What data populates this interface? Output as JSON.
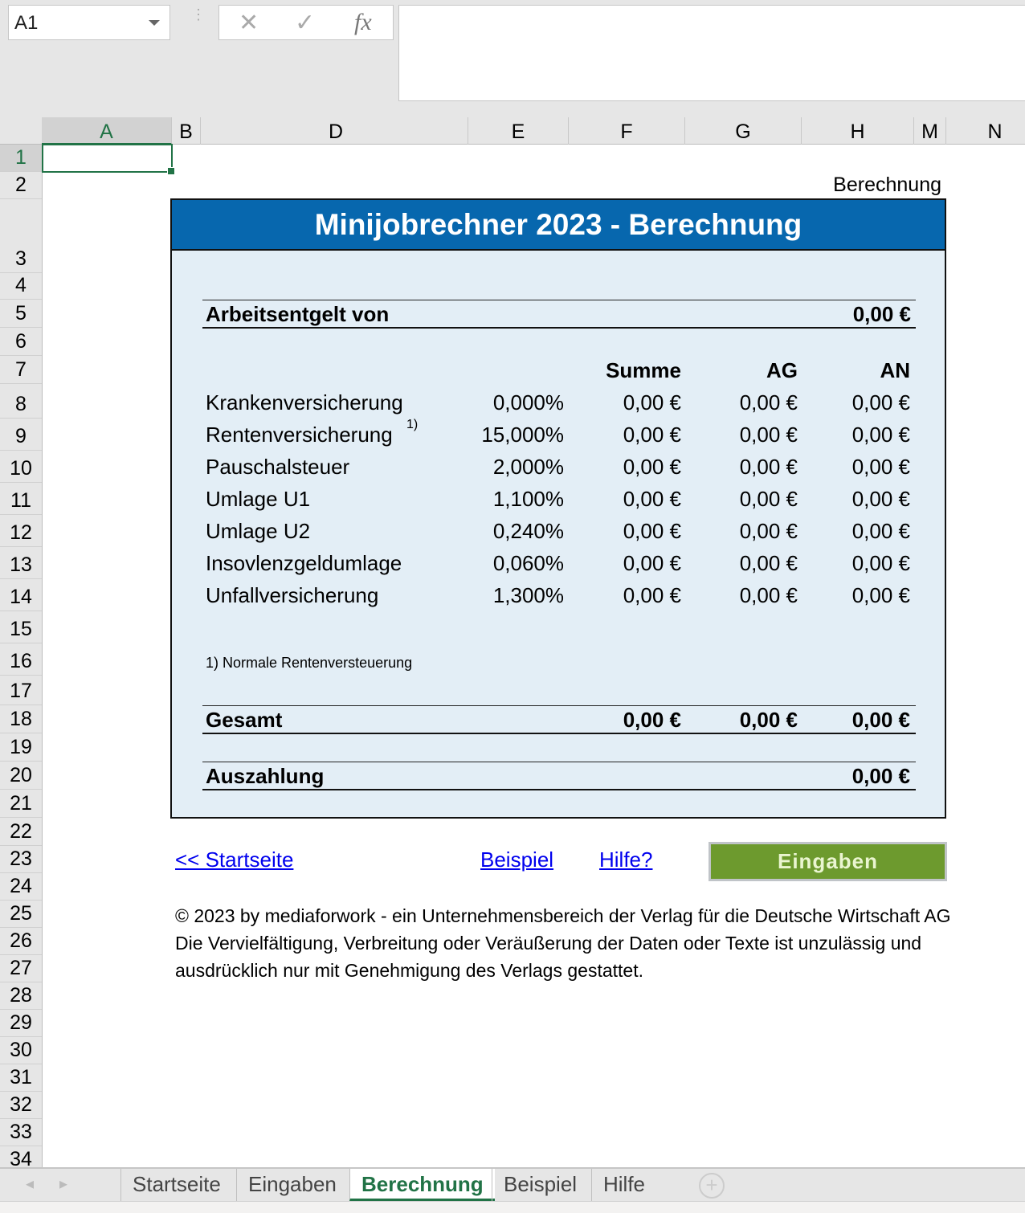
{
  "formula_bar": {
    "name_box": "A1",
    "cancel_icon": "✕",
    "enter_icon": "✓",
    "fx_label": "fx",
    "formula": ""
  },
  "columns": [
    "A",
    "B",
    "D",
    "E",
    "F",
    "G",
    "H",
    "M",
    "N"
  ],
  "rows": [
    "1",
    "2",
    "3",
    "4",
    "5",
    "6",
    "7",
    "8",
    "9",
    "10",
    "11",
    "12",
    "13",
    "14",
    "15",
    "16",
    "17",
    "18",
    "19",
    "20",
    "21",
    "22",
    "23",
    "24",
    "25",
    "26",
    "27",
    "28",
    "29",
    "30",
    "31",
    "32",
    "33",
    "34"
  ],
  "sheet_label": "Berechnung",
  "panel": {
    "title": "Minijobrechner 2023 - Berechnung",
    "income_label": "Arbeitsentgelt von",
    "income_value": "0,00 €",
    "headers": {
      "sum": "Summe",
      "ag": "AG",
      "an": "AN"
    },
    "items": [
      {
        "label": "Krankenversicherung",
        "sup": "",
        "rate": "0,000%",
        "sum": "0,00 €",
        "ag": "0,00 €",
        "an": "0,00 €"
      },
      {
        "label": "Rentenversicherung",
        "sup": "1)",
        "rate": "15,000%",
        "sum": "0,00 €",
        "ag": "0,00 €",
        "an": "0,00 €"
      },
      {
        "label": "Pauschalsteuer",
        "sup": "",
        "rate": "2,000%",
        "sum": "0,00 €",
        "ag": "0,00 €",
        "an": "0,00 €"
      },
      {
        "label": "Umlage U1",
        "sup": "",
        "rate": "1,100%",
        "sum": "0,00 €",
        "ag": "0,00 €",
        "an": "0,00 €"
      },
      {
        "label": "Umlage U2",
        "sup": "",
        "rate": "0,240%",
        "sum": "0,00 €",
        "ag": "0,00 €",
        "an": "0,00 €"
      },
      {
        "label": "Insovlenzgeldumlage",
        "sup": "",
        "rate": "0,060%",
        "sum": "0,00 €",
        "ag": "0,00 €",
        "an": "0,00 €"
      },
      {
        "label": "Unfallversicherung",
        "sup": "",
        "rate": "1,300%",
        "sum": "0,00 €",
        "ag": "0,00 €",
        "an": "0,00 €"
      }
    ],
    "footnote": "1) Normale Rentenversteuerung",
    "total": {
      "label": "Gesamt",
      "sum": "0,00 €",
      "ag": "0,00 €",
      "an": "0,00 €"
    },
    "payout": {
      "label": "Auszahlung",
      "value": "0,00 €"
    }
  },
  "links": {
    "home": "<< Startseite",
    "example": "Beispiel",
    "help": "Hilfe?"
  },
  "button": {
    "label": "Eingaben",
    "color": "#6d9a2e"
  },
  "copyright": [
    "© 2023 by mediaforwork - ein Unternehmensbereich der Verlag für die Deutsche Wirtschaft AG",
    "Die Vervielfältigung, Verbreitung oder Veräußerung der Daten oder Texte ist unzulässig und",
    "ausdrücklich nur mit Genehmigung des Verlags gestattet."
  ],
  "tabs": [
    "Startseite",
    "Eingaben",
    "Berechnung",
    "Beispiel",
    "Hilfe"
  ],
  "active_tab": "Berechnung",
  "colors": {
    "header_blue": "#0767ae",
    "panel_bg": "#e3eef6",
    "excel_green": "#217346"
  }
}
